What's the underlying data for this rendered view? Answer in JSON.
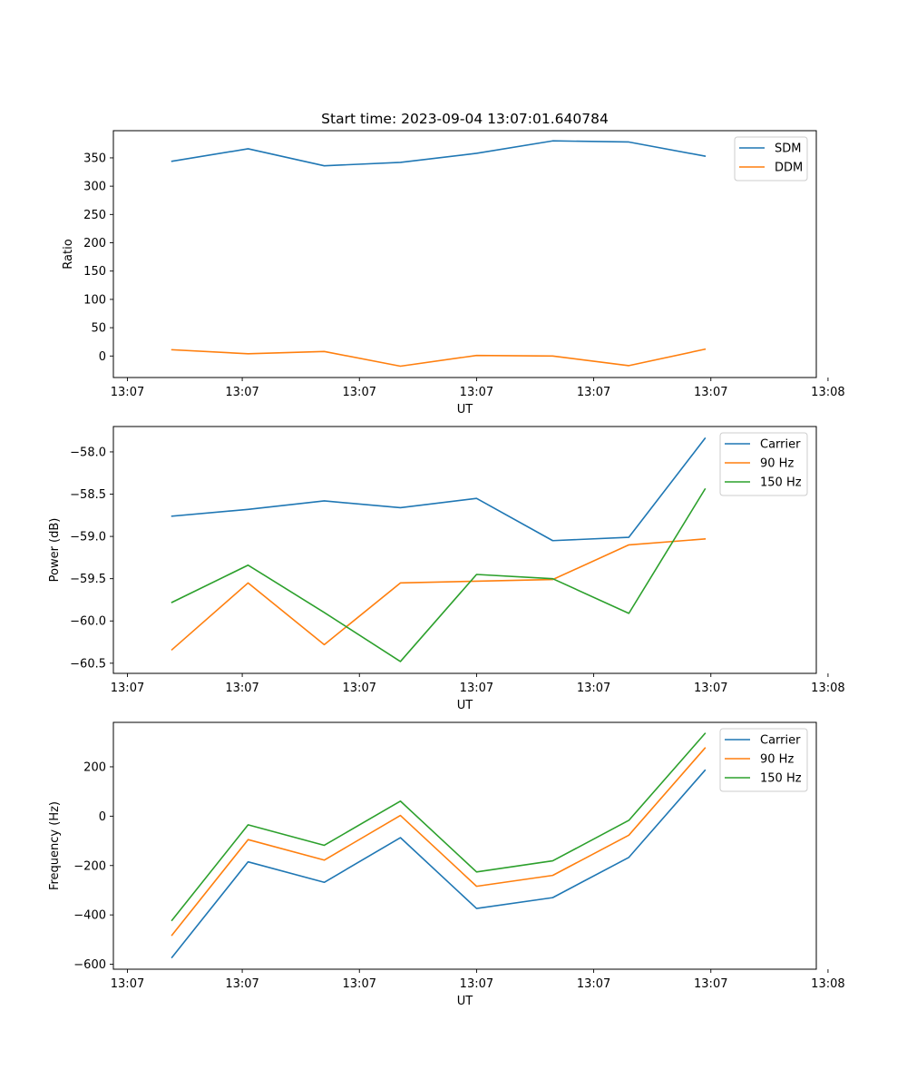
{
  "colors": {
    "blue": "#1f77b4",
    "orange": "#ff7f0e",
    "green": "#2ca02c"
  },
  "chart_data": [
    {
      "type": "line",
      "title": "Start time: 2023-09-04 13:07:01.640784",
      "xlabel": "UT",
      "ylabel": "Ratio",
      "x": [
        0.5,
        1.15,
        1.8,
        2.45,
        3.1,
        3.75,
        4.4,
        5.05
      ],
      "xlim": [
        0,
        6.0
      ],
      "x_ticks": [
        0.12,
        1.1,
        2.1,
        3.1,
        4.1,
        5.1,
        6.1
      ],
      "x_tick_labels": [
        "13:07",
        "13:07",
        "13:07",
        "13:07",
        "13:07",
        "13:07",
        "13:08"
      ],
      "ylim": [
        -38,
        398
      ],
      "y_ticks": [
        0,
        50,
        100,
        150,
        200,
        250,
        300,
        350
      ],
      "y_tick_labels": [
        "0",
        "50",
        "100",
        "150",
        "200",
        "250",
        "300",
        "350"
      ],
      "legend_position": "top-right",
      "series": [
        {
          "name": "SDM",
          "color": "#1f77b4",
          "values": [
            344,
            366,
            336,
            342,
            358,
            380,
            378,
            353
          ]
        },
        {
          "name": "DDM",
          "color": "#ff7f0e",
          "values": [
            11,
            4,
            8,
            -18,
            1,
            0,
            -17,
            12
          ]
        }
      ]
    },
    {
      "type": "line",
      "title": "",
      "xlabel": "UT",
      "ylabel": "Power (dB)",
      "x": [
        0.5,
        1.15,
        1.8,
        2.45,
        3.1,
        3.75,
        4.4,
        5.05
      ],
      "xlim": [
        0,
        6.0
      ],
      "x_ticks": [
        0.12,
        1.1,
        2.1,
        3.1,
        4.1,
        5.1,
        6.1
      ],
      "x_tick_labels": [
        "13:07",
        "13:07",
        "13:07",
        "13:07",
        "13:07",
        "13:07",
        "13:08"
      ],
      "ylim": [
        -60.62,
        -57.7
      ],
      "y_ticks": [
        -60.5,
        -60.0,
        -59.5,
        -59.0,
        -58.5,
        -58.0
      ],
      "y_tick_labels": [
        "−60.5",
        "−60.0",
        "−59.5",
        "−59.0",
        "−58.5",
        "−58.0"
      ],
      "legend_position": "top-right",
      "series": [
        {
          "name": "Carrier",
          "color": "#1f77b4",
          "values": [
            -58.76,
            -58.68,
            -58.58,
            -58.66,
            -58.55,
            -59.05,
            -59.01,
            -57.84
          ]
        },
        {
          "name": "90 Hz",
          "color": "#ff7f0e",
          "values": [
            -60.34,
            -59.55,
            -60.28,
            -59.55,
            -59.53,
            -59.51,
            -59.1,
            -59.03
          ]
        },
        {
          "name": "150 Hz",
          "color": "#2ca02c",
          "values": [
            -59.78,
            -59.34,
            -59.9,
            -60.48,
            -59.45,
            -59.5,
            -59.91,
            -58.44
          ]
        }
      ]
    },
    {
      "type": "line",
      "title": "",
      "xlabel": "UT",
      "ylabel": "Frequency (Hz)",
      "x": [
        0.5,
        1.15,
        1.8,
        2.45,
        3.1,
        3.75,
        4.4,
        5.05
      ],
      "xlim": [
        0,
        6.0
      ],
      "x_ticks": [
        0.12,
        1.1,
        2.1,
        3.1,
        4.1,
        5.1,
        6.1
      ],
      "x_tick_labels": [
        "13:07",
        "13:07",
        "13:07",
        "13:07",
        "13:07",
        "13:07",
        "13:08"
      ],
      "ylim": [
        -620,
        380
      ],
      "y_ticks": [
        -600,
        -400,
        -200,
        0,
        200
      ],
      "y_tick_labels": [
        "−600",
        "−400",
        "−200",
        "0",
        "200"
      ],
      "legend_position": "top-right",
      "series": [
        {
          "name": "Carrier",
          "color": "#1f77b4",
          "values": [
            -572,
            -185,
            -268,
            -87,
            -374,
            -330,
            -167,
            186
          ]
        },
        {
          "name": "90 Hz",
          "color": "#ff7f0e",
          "values": [
            -482,
            -95,
            -178,
            3,
            -284,
            -240,
            -77,
            276
          ]
        },
        {
          "name": "150 Hz",
          "color": "#2ca02c",
          "values": [
            -422,
            -35,
            -118,
            61,
            -226,
            -181,
            -17,
            335
          ]
        }
      ]
    }
  ]
}
